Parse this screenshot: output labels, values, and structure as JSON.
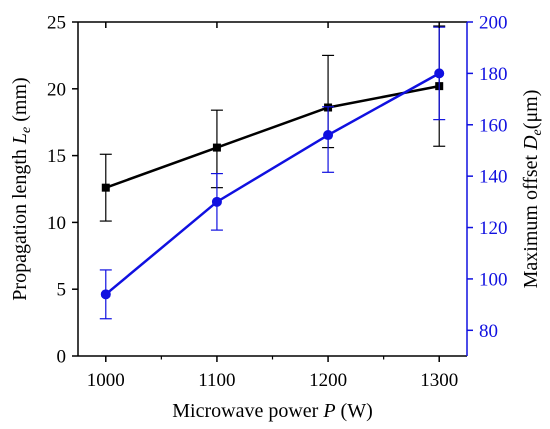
{
  "chart_data": {
    "type": "line",
    "title": "",
    "x": [
      1000,
      1100,
      1200,
      1300
    ],
    "xlabel": {
      "prefix": "Microwave power ",
      "symbol": "P",
      "suffix": " (W)"
    },
    "xlim": [
      975,
      1325
    ],
    "xticks": [
      1000,
      1100,
      1200,
      1300
    ],
    "ylabel_left": {
      "prefix": "Propagation length ",
      "symbol": "L",
      "subscript": "e",
      "suffix": " (mm)"
    },
    "ylim_left": [
      0,
      25
    ],
    "yticks_left": [
      0,
      5,
      10,
      15,
      20,
      25
    ],
    "ylabel_right": {
      "prefix": "Maximum offset ",
      "symbol": "D",
      "subscript": "e",
      "suffix": "(μm)"
    },
    "ylim_right": [
      70,
      200
    ],
    "yticks_right": [
      80,
      100,
      120,
      140,
      160,
      180,
      200
    ],
    "grid": false,
    "legend": "none",
    "series": [
      {
        "axis": "left",
        "color": "#000000",
        "marker": "square",
        "values": [
          12.6,
          15.6,
          18.6,
          20.2
        ],
        "err_low": [
          2.5,
          3.0,
          3.0,
          4.5
        ],
        "err_high": [
          2.5,
          2.8,
          3.9,
          4.5
        ]
      },
      {
        "axis": "right",
        "color": "#1010e0",
        "marker": "circle",
        "values": [
          94,
          130,
          156,
          180
        ],
        "err_low": [
          9.5,
          11,
          14.5,
          18
        ],
        "err_high": [
          9.5,
          11,
          11,
          18
        ]
      }
    ]
  }
}
